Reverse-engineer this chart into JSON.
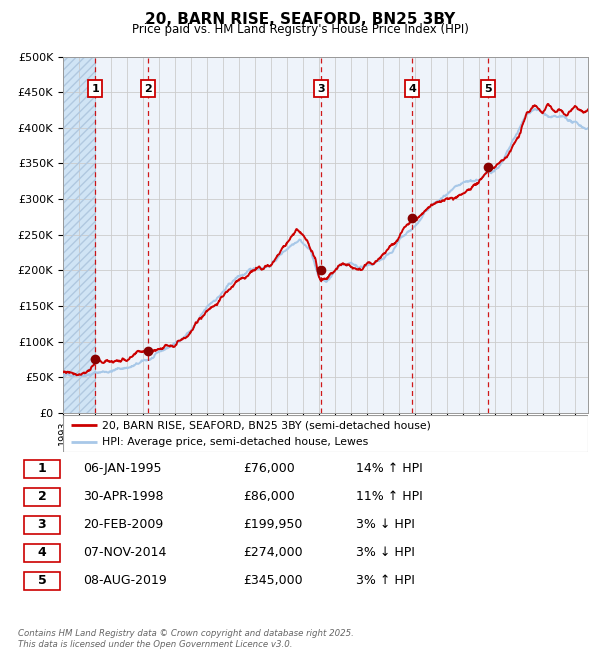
{
  "title": "20, BARN RISE, SEAFORD, BN25 3BY",
  "subtitle": "Price paid vs. HM Land Registry's House Price Index (HPI)",
  "ylabel_ticks": [
    "£0",
    "£50K",
    "£100K",
    "£150K",
    "£200K",
    "£250K",
    "£300K",
    "£350K",
    "£400K",
    "£450K",
    "£500K"
  ],
  "ylim": [
    0,
    500000
  ],
  "xlim_start": 1993.0,
  "xlim_end": 2025.83,
  "bg_hatched_end": 1995.03,
  "sale_dates": [
    1995.03,
    1998.33,
    2009.13,
    2014.85,
    2019.6
  ],
  "sale_prices": [
    76000,
    86000,
    199950,
    274000,
    345000
  ],
  "sale_labels": [
    "1",
    "2",
    "3",
    "4",
    "5"
  ],
  "vline_dates": [
    1995.03,
    1998.33,
    2009.13,
    2014.85,
    2019.6
  ],
  "legend_line1": "20, BARN RISE, SEAFORD, BN25 3BY (semi-detached house)",
  "legend_line2": "HPI: Average price, semi-detached house, Lewes",
  "table_rows": [
    [
      "1",
      "06-JAN-1995",
      "£76,000",
      "14% ↑ HPI"
    ],
    [
      "2",
      "30-APR-1998",
      "£86,000",
      "11% ↑ HPI"
    ],
    [
      "3",
      "20-FEB-2009",
      "£199,950",
      "3% ↓ HPI"
    ],
    [
      "4",
      "07-NOV-2014",
      "£274,000",
      "3% ↓ HPI"
    ],
    [
      "5",
      "08-AUG-2019",
      "£345,000",
      "3% ↑ HPI"
    ]
  ],
  "footer": "Contains HM Land Registry data © Crown copyright and database right 2025.\nThis data is licensed under the Open Government Licence v3.0.",
  "price_color": "#cc0000",
  "hpi_color": "#a8c8e8",
  "grid_color": "#cccccc",
  "vline_color": "#cc0000",
  "chart_bg": "#eef3fa"
}
